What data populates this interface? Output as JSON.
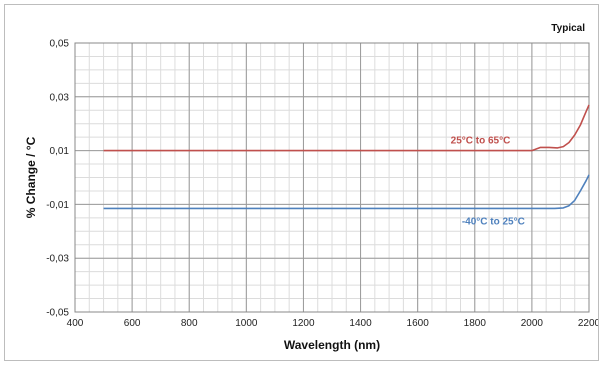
{
  "chart_data": {
    "type": "line",
    "title": "",
    "annotation": "Typical",
    "xlabel": "Wavelength (nm)",
    "ylabel": "% Change / °C",
    "xlim": [
      400,
      2200
    ],
    "ylim": [
      -0.05,
      0.05
    ],
    "x_ticks": [
      400,
      600,
      800,
      1000,
      1200,
      1400,
      1600,
      1800,
      2000,
      2200
    ],
    "y_ticks": [
      -0.05,
      -0.03,
      -0.01,
      0.01,
      0.03,
      0.05
    ],
    "x_tick_labels": [
      "400",
      "600",
      "800",
      "1000",
      "1200",
      "1400",
      "1600",
      "1800",
      "2000",
      "2200"
    ],
    "y_tick_labels": [
      "-0,05",
      "-0,03",
      "-0,01",
      "0,01",
      "0,03",
      "0,05"
    ],
    "x_minor_step": 50,
    "y_minor_step": 0.005,
    "grid": true,
    "series": [
      {
        "name": "25°C to 65°C",
        "color": "#c0504d",
        "x": [
          500,
          1000,
          1500,
          2000,
          2030,
          2060,
          2090,
          2110,
          2130,
          2150,
          2170,
          2190,
          2200
        ],
        "y": [
          0.01,
          0.01,
          0.01,
          0.01,
          0.0112,
          0.0112,
          0.011,
          0.0115,
          0.013,
          0.0158,
          0.0195,
          0.0245,
          0.027
        ]
      },
      {
        "name": "-40°C to 25°C",
        "color": "#4f81bd",
        "x": [
          500,
          1000,
          1500,
          2000,
          2080,
          2110,
          2130,
          2150,
          2170,
          2190,
          2200
        ],
        "y": [
          -0.0115,
          -0.0115,
          -0.0115,
          -0.0115,
          -0.0115,
          -0.0113,
          -0.0105,
          -0.0085,
          -0.005,
          -0.0012,
          0.001
        ]
      }
    ],
    "labels": [
      {
        "text": "25°C to 65°C",
        "series": 0,
        "x": 1820,
        "y": 0.0127
      },
      {
        "text": "-40°C to 25°C",
        "series": 1,
        "x": 1865,
        "y": -0.0174
      }
    ]
  }
}
